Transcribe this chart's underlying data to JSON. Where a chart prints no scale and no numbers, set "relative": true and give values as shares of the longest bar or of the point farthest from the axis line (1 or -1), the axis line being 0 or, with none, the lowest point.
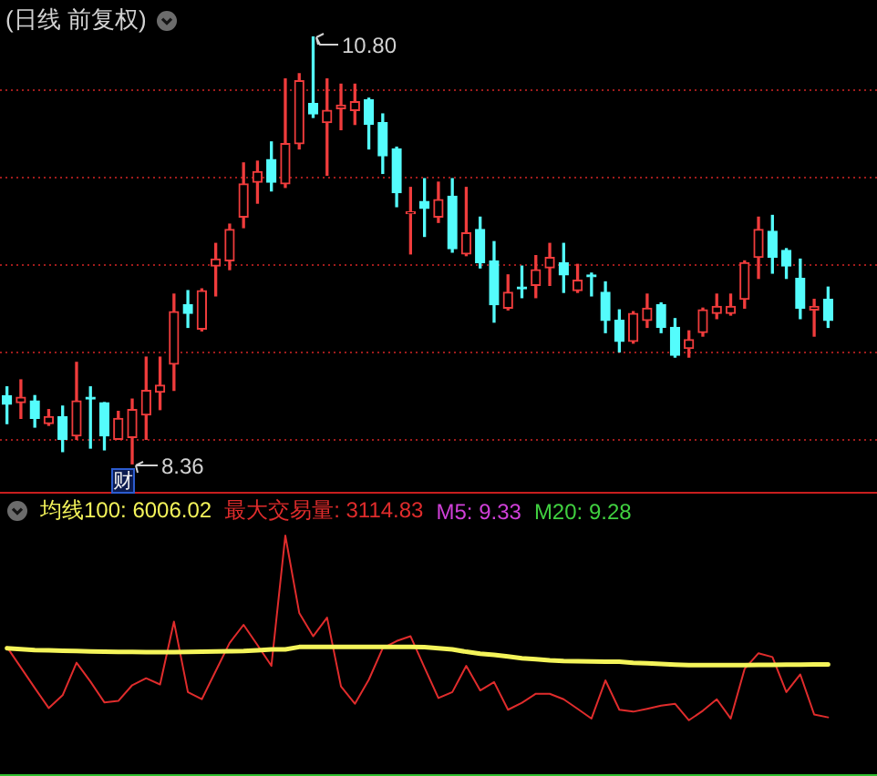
{
  "chart_data": [
    {
      "type": "candlestick",
      "title": "(日线 前复权)",
      "categories": [
        null,
        null,
        null,
        null,
        null,
        null,
        null,
        null,
        null,
        null,
        null,
        null,
        null,
        null,
        null,
        null,
        null,
        null,
        null,
        null,
        null,
        null,
        null,
        null,
        null,
        null,
        null,
        null,
        null,
        null,
        null,
        null,
        null,
        null,
        null,
        null,
        null,
        null,
        null,
        null,
        null,
        null,
        null,
        null,
        null,
        null,
        null,
        null,
        null,
        null,
        null,
        null,
        null,
        null,
        null,
        null,
        null,
        null,
        null,
        null
      ],
      "ohlc": [
        [
          8.75,
          8.8,
          8.59,
          8.7
        ],
        [
          8.71,
          8.84,
          8.62,
          8.74
        ],
        [
          8.72,
          8.75,
          8.57,
          8.62
        ],
        [
          8.59,
          8.67,
          8.58,
          8.63
        ],
        [
          8.63,
          8.69,
          8.43,
          8.5
        ],
        [
          8.52,
          8.94,
          8.5,
          8.72
        ],
        [
          8.74,
          8.8,
          8.45,
          8.73
        ],
        [
          8.71,
          8.71,
          8.44,
          8.52
        ],
        [
          8.5,
          8.66,
          8.5,
          8.62
        ],
        [
          8.51,
          8.73,
          8.36,
          8.67
        ],
        [
          8.64,
          8.97,
          8.5,
          8.78
        ],
        [
          8.77,
          8.97,
          8.67,
          8.81
        ],
        [
          8.93,
          9.33,
          8.78,
          9.23
        ],
        [
          9.27,
          9.35,
          9.14,
          9.22
        ],
        [
          9.13,
          9.36,
          9.12,
          9.35
        ],
        [
          9.49,
          9.62,
          9.32,
          9.53
        ],
        [
          9.52,
          9.73,
          9.47,
          9.7
        ],
        [
          9.77,
          10.08,
          9.71,
          9.96
        ],
        [
          9.97,
          10.09,
          9.85,
          10.03
        ],
        [
          10.1,
          10.2,
          9.92,
          9.97
        ],
        [
          9.96,
          10.56,
          9.94,
          10.19
        ],
        [
          10.19,
          10.59,
          10.16,
          10.55
        ],
        [
          10.42,
          10.8,
          10.34,
          10.36
        ],
        [
          10.31,
          10.56,
          10.01,
          10.38
        ],
        [
          10.39,
          10.53,
          10.27,
          10.41
        ],
        [
          10.38,
          10.53,
          10.3,
          10.43
        ],
        [
          10.44,
          10.45,
          10.16,
          10.3
        ],
        [
          10.31,
          10.36,
          10.02,
          10.12
        ],
        [
          10.16,
          10.17,
          9.83,
          9.91
        ],
        [
          9.79,
          9.94,
          9.56,
          9.8
        ],
        [
          9.86,
          9.99,
          9.66,
          9.82
        ],
        [
          9.77,
          9.97,
          9.74,
          9.87
        ],
        [
          9.89,
          9.99,
          9.57,
          9.59
        ],
        [
          9.56,
          9.94,
          9.55,
          9.68
        ],
        [
          9.7,
          9.77,
          9.48,
          9.51
        ],
        [
          9.52,
          9.63,
          9.17,
          9.27
        ],
        [
          9.25,
          9.44,
          9.24,
          9.34
        ],
        [
          9.37,
          9.49,
          9.31,
          9.36
        ],
        [
          9.38,
          9.55,
          9.31,
          9.47
        ],
        [
          9.48,
          9.62,
          9.38,
          9.54
        ],
        [
          9.51,
          9.62,
          9.34,
          9.44
        ],
        [
          9.35,
          9.5,
          9.34,
          9.41
        ],
        [
          9.44,
          9.45,
          9.32,
          9.43
        ],
        [
          9.34,
          9.4,
          9.11,
          9.18
        ],
        [
          9.18,
          9.24,
          9.0,
          9.06
        ],
        [
          9.06,
          9.23,
          9.05,
          9.22
        ],
        [
          9.18,
          9.33,
          9.14,
          9.25
        ],
        [
          9.27,
          9.28,
          9.11,
          9.14
        ],
        [
          9.14,
          9.19,
          8.97,
          8.98
        ],
        [
          9.02,
          9.12,
          8.97,
          9.07
        ],
        [
          9.11,
          9.25,
          9.09,
          9.24
        ],
        [
          9.22,
          9.33,
          9.19,
          9.26
        ],
        [
          9.22,
          9.33,
          9.21,
          9.26
        ],
        [
          9.3,
          9.52,
          9.25,
          9.51
        ],
        [
          9.54,
          9.77,
          9.42,
          9.7
        ],
        [
          9.69,
          9.78,
          9.45,
          9.54
        ],
        [
          9.58,
          9.59,
          9.42,
          9.49
        ],
        [
          9.42,
          9.53,
          9.19,
          9.25
        ],
        [
          9.24,
          9.3,
          9.09,
          9.26
        ],
        [
          9.3,
          9.37,
          9.14,
          9.18
        ]
      ],
      "colors": [
        "#54fcfc",
        "#f03c3c",
        "#54fcfc",
        "#f03c3c",
        "#54fcfc",
        "#f03c3c",
        "#54fcfc",
        "#54fcfc",
        "#f03c3c",
        "#f03c3c",
        "#f03c3c",
        "#f03c3c",
        "#f03c3c",
        "#54fcfc",
        "#f03c3c",
        "#f03c3c",
        "#f03c3c",
        "#f03c3c",
        "#f03c3c",
        "#54fcfc",
        "#f03c3c",
        "#f03c3c",
        "#54fcfc",
        "#f03c3c",
        "#f03c3c",
        "#f03c3c",
        "#54fcfc",
        "#54fcfc",
        "#54fcfc",
        "#f03c3c",
        "#54fcfc",
        "#f03c3c",
        "#54fcfc",
        "#f03c3c",
        "#54fcfc",
        "#54fcfc",
        "#f03c3c",
        "#54fcfc",
        "#f03c3c",
        "#f03c3c",
        "#54fcfc",
        "#f03c3c",
        "#54fcfc",
        "#54fcfc",
        "#54fcfc",
        "#f03c3c",
        "#f03c3c",
        "#54fcfc",
        "#54fcfc",
        "#f03c3c",
        "#f03c3c",
        "#f03c3c",
        "#f03c3c",
        "#f03c3c",
        "#f03c3c",
        "#54fcfc",
        "#54fcfc",
        "#54fcfc",
        "#f03c3c",
        "#54fcfc"
      ],
      "ylim": [
        8.2,
        10.98
      ],
      "yticks": [
        {
          "value": 8.5,
          "label": null
        },
        {
          "value": 9.0,
          "label": null
        },
        {
          "value": 9.5,
          "label": null
        },
        {
          "value": 10.0,
          "label": null
        },
        {
          "value": 10.5,
          "label": null
        }
      ],
      "grid": "y",
      "tick_labels": false,
      "annotations": [
        "10.80",
        "8.36",
        "财"
      ]
    },
    {
      "type": "line",
      "relative": true,
      "categories": [
        null,
        null,
        null,
        null,
        null,
        null,
        null,
        null,
        null,
        null,
        null,
        null,
        null,
        null,
        null,
        null,
        null,
        null,
        null,
        null,
        null,
        null,
        null,
        null,
        null,
        null,
        null,
        null,
        null,
        null,
        null,
        null,
        null,
        null,
        null,
        null,
        null,
        null,
        null,
        null,
        null,
        null,
        null,
        null,
        null,
        null,
        null,
        null,
        null,
        null,
        null,
        null,
        null,
        null,
        null,
        null,
        null,
        null,
        null,
        null
      ],
      "series": [
        {
          "name": "均线100: 6006.02",
          "color": "#f4f45a",
          "values": [
            0.528,
            0.524,
            0.52,
            0.519,
            0.517,
            0.516,
            0.514,
            0.513,
            0.512,
            0.512,
            0.511,
            0.511,
            0.511,
            0.512,
            0.513,
            0.514,
            0.515,
            0.516,
            0.519,
            0.523,
            0.523,
            0.533,
            0.533,
            0.533,
            0.533,
            0.533,
            0.533,
            0.533,
            0.533,
            0.533,
            0.532,
            0.528,
            0.523,
            0.513,
            0.505,
            0.5,
            0.493,
            0.486,
            0.482,
            0.477,
            0.474,
            0.473,
            0.472,
            0.471,
            0.471,
            0.467,
            0.465,
            0.462,
            0.459,
            0.457,
            0.457,
            0.457,
            0.457,
            0.457,
            0.458,
            0.458,
            0.459,
            0.459,
            0.46,
            0.46
          ]
        },
        {
          "name": "最大交易量: 3114.83",
          "color": "#e02c2c",
          "values": [
            0.533,
            0.447,
            0.361,
            0.277,
            0.331,
            0.467,
            0.388,
            0.301,
            0.307,
            0.373,
            0.402,
            0.376,
            0.639,
            0.344,
            0.314,
            0.432,
            0.55,
            0.626,
            0.541,
            0.454,
            1,
            0.676,
            0.578,
            0.656,
            0.368,
            0.295,
            0.396,
            0.528,
            0.558,
            0.578,
            0.447,
            0.319,
            0.344,
            0.454,
            0.351,
            0.386,
            0.27,
            0.299,
            0.337,
            0.337,
            0.314,
            0.274,
            0.233,
            0.393,
            0.27,
            0.262,
            0.274,
            0.287,
            0.295,
            0.226,
            0.266,
            0.314,
            0.233,
            0.441,
            0.507,
            0.491,
            0.344,
            0.418,
            0.25,
            0.238
          ]
        },
        {
          "name": "M5: 9.33",
          "color": "#d040d8",
          "values": [
            null,
            null,
            null,
            null,
            null,
            null,
            null,
            null,
            null,
            null,
            null,
            null,
            null,
            null,
            null,
            null,
            null,
            null,
            null,
            null,
            null,
            null,
            null,
            null,
            null,
            null,
            null,
            null,
            null,
            null,
            null,
            null,
            null,
            null,
            null,
            null,
            null,
            null,
            null,
            null,
            null,
            null,
            null,
            null,
            null,
            null,
            null,
            null,
            null,
            null,
            null,
            null,
            null,
            null,
            null,
            null,
            null,
            null,
            null,
            null
          ]
        },
        {
          "name": "M20: 9.28",
          "color": "#40d040",
          "values": [
            null,
            null,
            null,
            null,
            null,
            null,
            null,
            null,
            null,
            null,
            null,
            null,
            null,
            null,
            null,
            null,
            null,
            null,
            null,
            null,
            null,
            null,
            null,
            null,
            null,
            null,
            null,
            null,
            null,
            null,
            null,
            null,
            null,
            null,
            null,
            null,
            null,
            null,
            null,
            null,
            null,
            null,
            null,
            null,
            null,
            null,
            null,
            null,
            null,
            null,
            null,
            null,
            null,
            null,
            null,
            null,
            null,
            null,
            null,
            null
          ]
        }
      ],
      "tick_labels": false,
      "legend": "top left"
    }
  ]
}
